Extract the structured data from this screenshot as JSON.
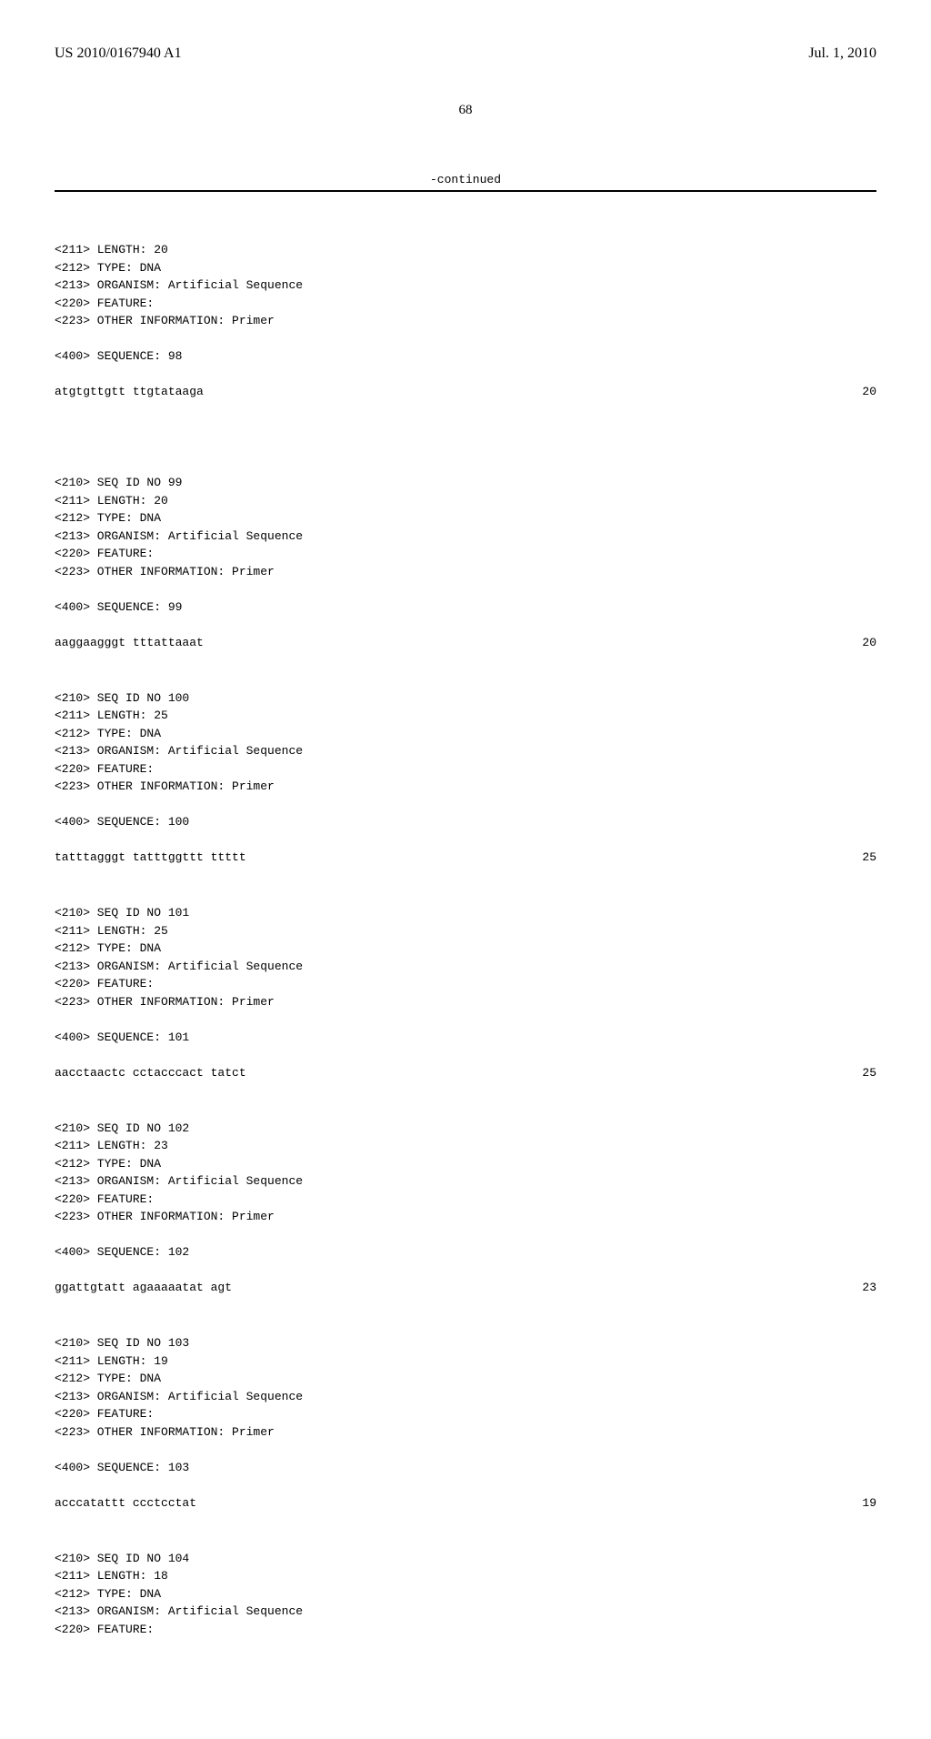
{
  "page": {
    "publication_number": "US 2010/0167940 A1",
    "date": "Jul. 1, 2010",
    "page_number": "68",
    "continued_label": "-continued"
  },
  "first_block": {
    "lines": [
      "<211> LENGTH: 20",
      "<212> TYPE: DNA",
      "<213> ORGANISM: Artificial Sequence",
      "<220> FEATURE:",
      "<223> OTHER INFORMATION: Primer"
    ],
    "sequence_label": "<400> SEQUENCE: 98",
    "sequence": "atgtgttgtt ttgtataaga",
    "length_num": "20"
  },
  "blocks": [
    {
      "lines": [
        "<210> SEQ ID NO 99",
        "<211> LENGTH: 20",
        "<212> TYPE: DNA",
        "<213> ORGANISM: Artificial Sequence",
        "<220> FEATURE:",
        "<223> OTHER INFORMATION: Primer"
      ],
      "sequence_label": "<400> SEQUENCE: 99",
      "sequence": "aaggaagggt tttattaaat",
      "length_num": "20"
    },
    {
      "lines": [
        "<210> SEQ ID NO 100",
        "<211> LENGTH: 25",
        "<212> TYPE: DNA",
        "<213> ORGANISM: Artificial Sequence",
        "<220> FEATURE:",
        "<223> OTHER INFORMATION: Primer"
      ],
      "sequence_label": "<400> SEQUENCE: 100",
      "sequence": "tatttagggt tatttggttt ttttt",
      "length_num": "25"
    },
    {
      "lines": [
        "<210> SEQ ID NO 101",
        "<211> LENGTH: 25",
        "<212> TYPE: DNA",
        "<213> ORGANISM: Artificial Sequence",
        "<220> FEATURE:",
        "<223> OTHER INFORMATION: Primer"
      ],
      "sequence_label": "<400> SEQUENCE: 101",
      "sequence": "aacctaactc cctacccact tatct",
      "length_num": "25"
    },
    {
      "lines": [
        "<210> SEQ ID NO 102",
        "<211> LENGTH: 23",
        "<212> TYPE: DNA",
        "<213> ORGANISM: Artificial Sequence",
        "<220> FEATURE:",
        "<223> OTHER INFORMATION: Primer"
      ],
      "sequence_label": "<400> SEQUENCE: 102",
      "sequence": "ggattgtatt agaaaaatat agt",
      "length_num": "23"
    },
    {
      "lines": [
        "<210> SEQ ID NO 103",
        "<211> LENGTH: 19",
        "<212> TYPE: DNA",
        "<213> ORGANISM: Artificial Sequence",
        "<220> FEATURE:",
        "<223> OTHER INFORMATION: Primer"
      ],
      "sequence_label": "<400> SEQUENCE: 103",
      "sequence": "acccatattt ccctcctat",
      "length_num": "19"
    },
    {
      "lines": [
        "<210> SEQ ID NO 104",
        "<211> LENGTH: 18",
        "<212> TYPE: DNA",
        "<213> ORGANISM: Artificial Sequence",
        "<220> FEATURE:"
      ],
      "sequence_label": null,
      "sequence": null,
      "length_num": null
    }
  ]
}
